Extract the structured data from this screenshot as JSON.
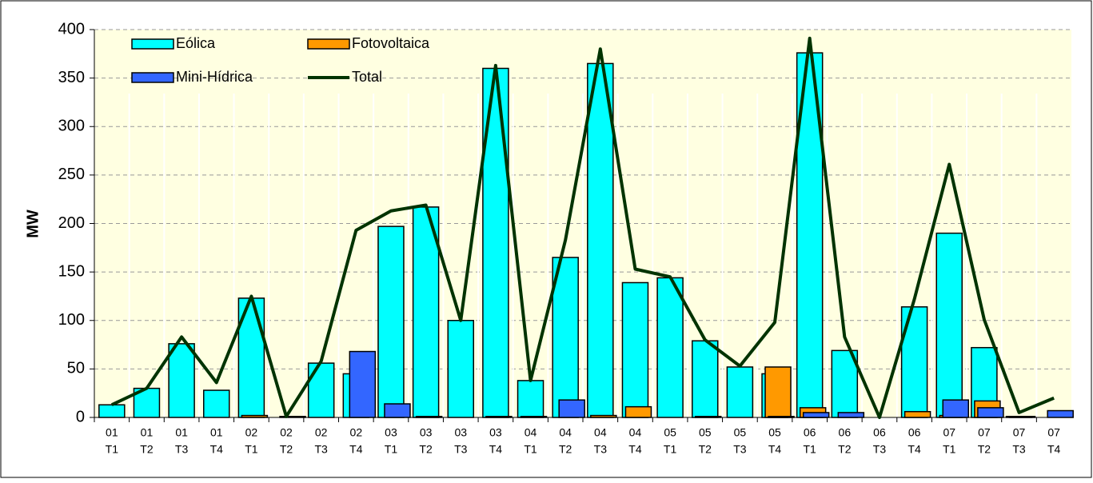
{
  "chart_data": {
    "type": "bar",
    "y_label": "MW",
    "categories": [
      [
        "01",
        "T1"
      ],
      [
        "01",
        "T2"
      ],
      [
        "01",
        "T3"
      ],
      [
        "01",
        "T4"
      ],
      [
        "02",
        "T1"
      ],
      [
        "02",
        "T2"
      ],
      [
        "02",
        "T3"
      ],
      [
        "02",
        "T4"
      ],
      [
        "03",
        "T1"
      ],
      [
        "03",
        "T2"
      ],
      [
        "03",
        "T3"
      ],
      [
        "03",
        "T4"
      ],
      [
        "04",
        "T1"
      ],
      [
        "04",
        "T2"
      ],
      [
        "04",
        "T3"
      ],
      [
        "04",
        "T4"
      ],
      [
        "05",
        "T1"
      ],
      [
        "05",
        "T2"
      ],
      [
        "05",
        "T3"
      ],
      [
        "05",
        "T4"
      ],
      [
        "06",
        "T1"
      ],
      [
        "06",
        "T2"
      ],
      [
        "06",
        "T3"
      ],
      [
        "06",
        "T4"
      ],
      [
        "07",
        "T1"
      ],
      [
        "07",
        "T2"
      ],
      [
        "07",
        "T3"
      ],
      [
        "07",
        "T4"
      ]
    ],
    "series": [
      {
        "name": "Eólica",
        "color": "#00ffff",
        "values": [
          13,
          30,
          76,
          28,
          123,
          0,
          56,
          45,
          197,
          217,
          100,
          360,
          38,
          165,
          365,
          139,
          144,
          79,
          52,
          45,
          376,
          69,
          0,
          114,
          190,
          72,
          1,
          0
        ]
      },
      {
        "name": "Fotovoltaica",
        "color": "#ff9900",
        "values": [
          0,
          0,
          0,
          0,
          2,
          0,
          0,
          0,
          0,
          1,
          0,
          1,
          1,
          0,
          2,
          11,
          0,
          1,
          0,
          52,
          10,
          0,
          0,
          6,
          2,
          17,
          1,
          0
        ]
      },
      {
        "name": "Mini-Hídrica",
        "color": "#3366ff",
        "values": [
          0,
          0,
          0,
          0,
          0,
          1,
          0,
          68,
          14,
          0,
          0,
          0,
          0,
          18,
          0,
          0,
          0,
          0,
          0,
          1,
          5,
          5,
          0,
          0,
          18,
          10,
          0,
          7
        ]
      },
      {
        "name": "Total",
        "type": "line",
        "color": "#003300",
        "values": [
          13,
          30,
          83,
          36,
          125,
          1,
          58,
          193,
          213,
          219,
          100,
          363,
          38,
          183,
          380,
          153,
          145,
          80,
          53,
          98,
          391,
          83,
          0,
          122,
          261,
          101,
          5,
          20
        ]
      }
    ],
    "ylim": [
      0,
      400
    ],
    "yticks": [
      0,
      50,
      100,
      150,
      200,
      250,
      300,
      350,
      400
    ],
    "grid": true
  }
}
